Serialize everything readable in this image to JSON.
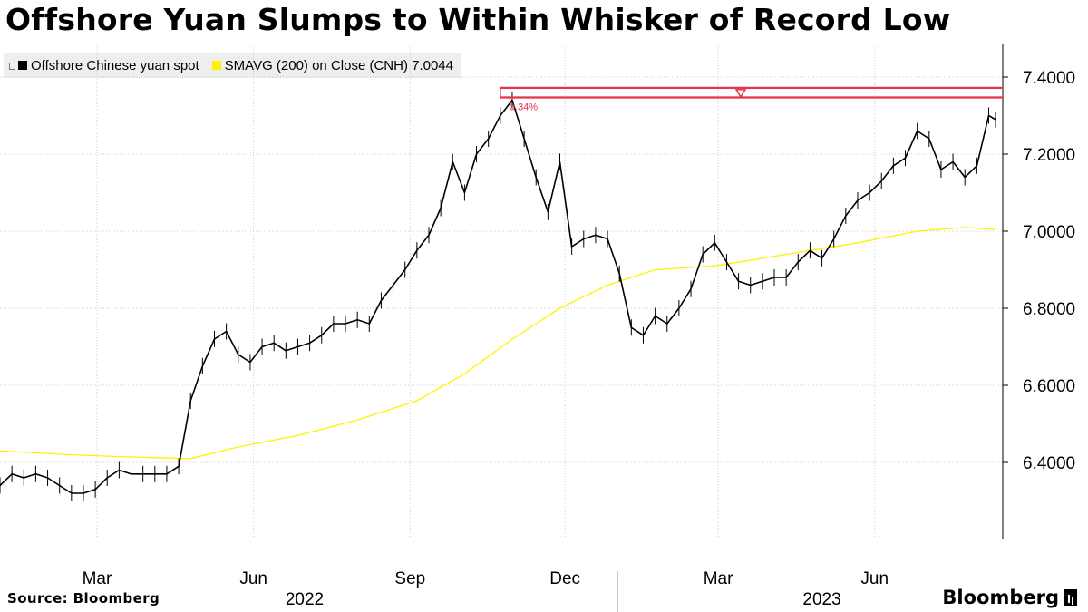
{
  "title": "Offshore Yuan Slumps to Within Whisker of Record Low",
  "legend": {
    "spot_label": "Offshore Chinese yuan spot",
    "sma_label": "SMAVG (200)  on Close (CNH) 7.0044"
  },
  "footer": {
    "source": "Source: Bloomberg",
    "brand": "Bloomberg"
  },
  "colors": {
    "spot": "#000000",
    "sma": "#fff200",
    "marker": "#e8334a",
    "grid": "#cccccc"
  },
  "chart_data": {
    "type": "line",
    "x_axis": {
      "months": [
        "Mar",
        "Jun",
        "Sep",
        "Dec",
        "Mar",
        "Jun"
      ],
      "years": [
        "2022",
        "2023"
      ]
    },
    "y_axis": {
      "ticks": [
        "7.4000",
        "7.2000",
        "7.0000",
        "6.8000",
        "6.6000",
        "6.4000"
      ],
      "tick_values": [
        7.4,
        7.2,
        7.0,
        6.8,
        6.6,
        6.4
      ],
      "ylim": [
        6.2,
        7.48
      ],
      "side": "right"
    },
    "date_range": [
      "2022-01-03",
      "2023-08-11"
    ],
    "reference_lines": [
      7.372,
      7.347
    ],
    "annotation": "0.34%",
    "series": [
      {
        "name": "Offshore Chinese yuan spot",
        "points": [
          [
            "2022-01-03",
            6.34
          ],
          [
            "2022-01-10",
            6.37
          ],
          [
            "2022-01-17",
            6.36
          ],
          [
            "2022-01-24",
            6.37
          ],
          [
            "2022-01-31",
            6.36
          ],
          [
            "2022-02-07",
            6.34
          ],
          [
            "2022-02-14",
            6.32
          ],
          [
            "2022-02-21",
            6.32
          ],
          [
            "2022-02-28",
            6.33
          ],
          [
            "2022-03-07",
            6.36
          ],
          [
            "2022-03-14",
            6.38
          ],
          [
            "2022-03-21",
            6.37
          ],
          [
            "2022-03-28",
            6.37
          ],
          [
            "2022-04-04",
            6.37
          ],
          [
            "2022-04-11",
            6.37
          ],
          [
            "2022-04-18",
            6.39
          ],
          [
            "2022-04-25",
            6.56
          ],
          [
            "2022-05-02",
            6.65
          ],
          [
            "2022-05-09",
            6.72
          ],
          [
            "2022-05-16",
            6.74
          ],
          [
            "2022-05-23",
            6.68
          ],
          [
            "2022-05-30",
            6.66
          ],
          [
            "2022-06-06",
            6.7
          ],
          [
            "2022-06-13",
            6.71
          ],
          [
            "2022-06-20",
            6.69
          ],
          [
            "2022-06-27",
            6.7
          ],
          [
            "2022-07-04",
            6.71
          ],
          [
            "2022-07-11",
            6.73
          ],
          [
            "2022-07-18",
            6.76
          ],
          [
            "2022-07-25",
            6.76
          ],
          [
            "2022-08-01",
            6.77
          ],
          [
            "2022-08-08",
            6.76
          ],
          [
            "2022-08-15",
            6.82
          ],
          [
            "2022-08-22",
            6.86
          ],
          [
            "2022-08-29",
            6.9
          ],
          [
            "2022-09-05",
            6.95
          ],
          [
            "2022-09-12",
            6.99
          ],
          [
            "2022-09-19",
            7.06
          ],
          [
            "2022-09-26",
            7.18
          ],
          [
            "2022-10-03",
            7.1
          ],
          [
            "2022-10-10",
            7.2
          ],
          [
            "2022-10-17",
            7.24
          ],
          [
            "2022-10-24",
            7.3
          ],
          [
            "2022-10-31",
            7.34
          ],
          [
            "2022-11-07",
            7.24
          ],
          [
            "2022-11-14",
            7.14
          ],
          [
            "2022-11-21",
            7.05
          ],
          [
            "2022-11-28",
            7.18
          ],
          [
            "2022-12-05",
            6.96
          ],
          [
            "2022-12-12",
            6.98
          ],
          [
            "2022-12-19",
            6.99
          ],
          [
            "2022-12-26",
            6.98
          ],
          [
            "2023-01-02",
            6.89
          ],
          [
            "2023-01-09",
            6.75
          ],
          [
            "2023-01-16",
            6.73
          ],
          [
            "2023-01-23",
            6.78
          ],
          [
            "2023-01-30",
            6.76
          ],
          [
            "2023-02-06",
            6.8
          ],
          [
            "2023-02-13",
            6.85
          ],
          [
            "2023-02-20",
            6.94
          ],
          [
            "2023-02-27",
            6.97
          ],
          [
            "2023-03-06",
            6.92
          ],
          [
            "2023-03-13",
            6.87
          ],
          [
            "2023-03-20",
            6.86
          ],
          [
            "2023-03-27",
            6.87
          ],
          [
            "2023-04-03",
            6.88
          ],
          [
            "2023-04-10",
            6.88
          ],
          [
            "2023-04-17",
            6.92
          ],
          [
            "2023-04-24",
            6.95
          ],
          [
            "2023-05-01",
            6.93
          ],
          [
            "2023-05-08",
            6.98
          ],
          [
            "2023-05-15",
            7.04
          ],
          [
            "2023-05-22",
            7.08
          ],
          [
            "2023-05-29",
            7.1
          ],
          [
            "2023-06-05",
            7.13
          ],
          [
            "2023-06-12",
            7.17
          ],
          [
            "2023-06-19",
            7.19
          ],
          [
            "2023-06-26",
            7.26
          ],
          [
            "2023-07-03",
            7.24
          ],
          [
            "2023-07-10",
            7.16
          ],
          [
            "2023-07-17",
            7.18
          ],
          [
            "2023-07-24",
            7.14
          ],
          [
            "2023-07-31",
            7.17
          ],
          [
            "2023-08-07",
            7.3
          ],
          [
            "2023-08-11",
            7.29
          ]
        ]
      },
      {
        "name": "SMAVG (200)  on Close (CNH) 7.0044",
        "points": [
          [
            "2022-01-03",
            6.43
          ],
          [
            "2022-02-14",
            6.42
          ],
          [
            "2022-03-14",
            6.415
          ],
          [
            "2022-04-25",
            6.41
          ],
          [
            "2022-05-23",
            6.44
          ],
          [
            "2022-06-27",
            6.47
          ],
          [
            "2022-08-01",
            6.51
          ],
          [
            "2022-09-05",
            6.56
          ],
          [
            "2022-10-03",
            6.63
          ],
          [
            "2022-10-31",
            6.72
          ],
          [
            "2022-11-28",
            6.8
          ],
          [
            "2022-12-26",
            6.86
          ],
          [
            "2023-01-23",
            6.9
          ],
          [
            "2023-02-27",
            6.91
          ],
          [
            "2023-03-27",
            6.93
          ],
          [
            "2023-04-24",
            6.95
          ],
          [
            "2023-05-22",
            6.97
          ],
          [
            "2023-06-26",
            7.0
          ],
          [
            "2023-07-24",
            7.01
          ],
          [
            "2023-08-11",
            7.0044
          ]
        ]
      }
    ]
  }
}
